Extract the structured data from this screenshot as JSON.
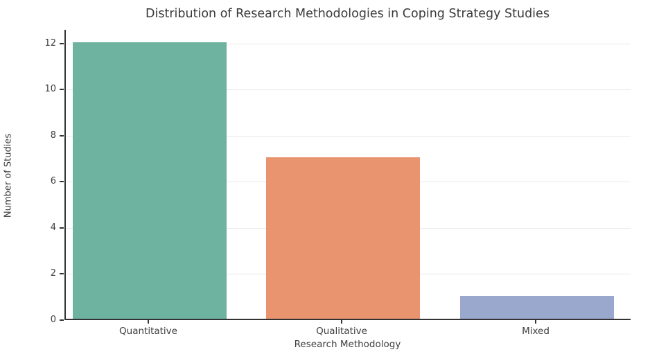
{
  "chart_data": {
    "type": "bar",
    "title": "Distribution of Research Methodologies in Coping Strategy Studies",
    "categories": [
      "Quantitative",
      "Qualitative",
      "Mixed"
    ],
    "values": [
      12,
      7,
      1
    ],
    "bar_colors": [
      "#6db3a0",
      "#e9946f",
      "#9aa8cd"
    ],
    "xlabel": "Research Methodology",
    "ylabel": "Number of Studies",
    "ylim": [
      0,
      12.6
    ],
    "yticks": [
      0,
      2,
      4,
      6,
      8,
      10,
      12
    ],
    "grid": "horizontal",
    "legend": "none",
    "colors": {
      "spine": "#333333",
      "gridline": "#e8e8e8",
      "text": "#3d3d3d"
    }
  }
}
